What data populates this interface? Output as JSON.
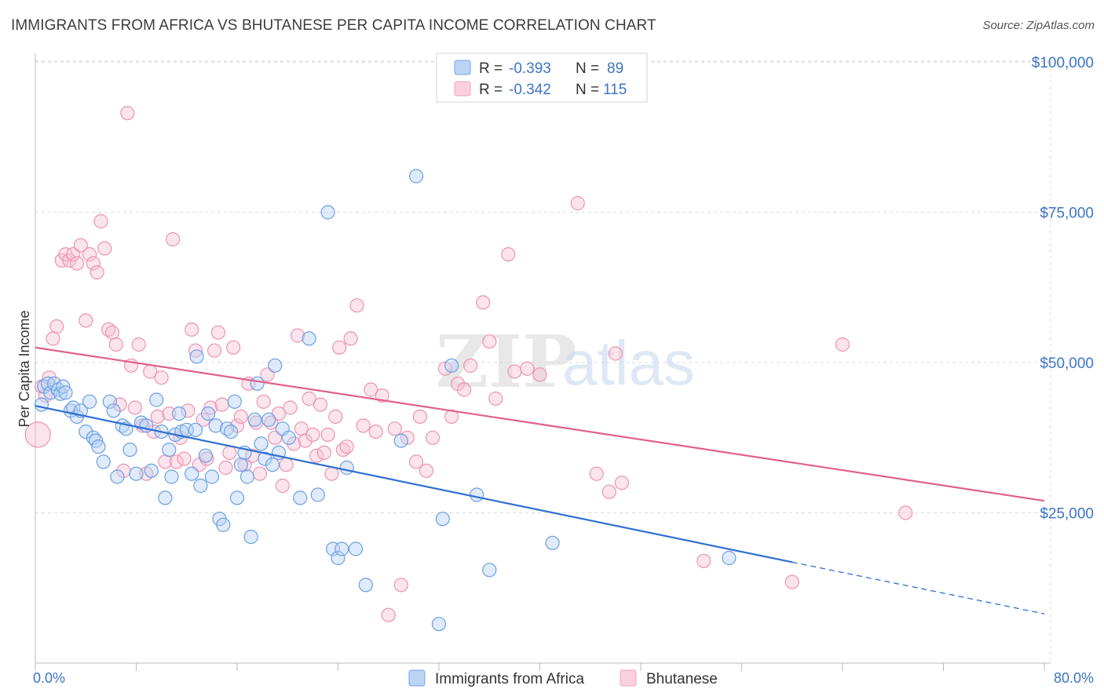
{
  "header": {
    "title": "IMMIGRANTS FROM AFRICA VS BHUTANESE PER CAPITA INCOME CORRELATION CHART",
    "source": "Source: ZipAtlas.com"
  },
  "watermark": {
    "zip": "ZIP",
    "atlas": "atlas"
  },
  "legend": {
    "rows": [
      {
        "r_label": "R = ",
        "r_value": "-0.393",
        "n_label": "N = ",
        "n_value": "89"
      },
      {
        "r_label": "R = ",
        "r_value": "-0.342",
        "n_label": "N = ",
        "n_value": "115"
      }
    ]
  },
  "chart_data": {
    "type": "scatter",
    "title": "IMMIGRANTS FROM AFRICA VS BHUTANESE PER CAPITA INCOME CORRELATION CHART",
    "xlabel": "",
    "ylabel": "Per Capita Income",
    "xlim": [
      0,
      80
    ],
    "ylim": [
      0,
      105000
    ],
    "x_tick_labels": [
      "0.0%",
      "80.0%"
    ],
    "y_ticks": [
      25000,
      50000,
      75000,
      100000
    ],
    "y_tick_labels": [
      "$25,000",
      "$50,000",
      "$75,000",
      "$100,000"
    ],
    "grid": true,
    "legend_position": "top-center",
    "colors": {
      "africa": "#6fa3e8",
      "africa_line": "#2f6fd0",
      "bhutanese": "#f1a0bd",
      "bhutanese_line": "#e0608a"
    },
    "series": [
      {
        "name": "Immigrants from Africa",
        "r": -0.393,
        "n": 89,
        "trend": {
          "x0": 0,
          "y0": 42800,
          "x1": 60,
          "y1": 16800,
          "dash_to_x": 80,
          "dash_to_y": 8200
        },
        "points": [
          [
            0.5,
            43000
          ],
          [
            0.7,
            46000
          ],
          [
            1.0,
            46500
          ],
          [
            1.2,
            45000
          ],
          [
            1.5,
            46500
          ],
          [
            1.8,
            45500
          ],
          [
            2.0,
            44800
          ],
          [
            2.2,
            46000
          ],
          [
            2.4,
            45000
          ],
          [
            2.8,
            42000
          ],
          [
            3.0,
            42500
          ],
          [
            3.3,
            41000
          ],
          [
            3.6,
            42000
          ],
          [
            4.0,
            38500
          ],
          [
            4.3,
            43500
          ],
          [
            4.6,
            37500
          ],
          [
            4.8,
            37000
          ],
          [
            5.0,
            36000
          ],
          [
            5.4,
            33500
          ],
          [
            5.9,
            43500
          ],
          [
            6.2,
            42000
          ],
          [
            6.5,
            31000
          ],
          [
            6.9,
            39500
          ],
          [
            7.2,
            39000
          ],
          [
            7.5,
            35500
          ],
          [
            8.0,
            31500
          ],
          [
            8.4,
            40000
          ],
          [
            8.8,
            39500
          ],
          [
            9.2,
            32000
          ],
          [
            9.6,
            43800
          ],
          [
            10.0,
            38500
          ],
          [
            10.3,
            27500
          ],
          [
            10.6,
            35500
          ],
          [
            10.8,
            31000
          ],
          [
            11.1,
            38000
          ],
          [
            11.4,
            41500
          ],
          [
            11.6,
            38500
          ],
          [
            12.0,
            38800
          ],
          [
            12.4,
            31500
          ],
          [
            12.7,
            38800
          ],
          [
            12.8,
            51000
          ],
          [
            13.1,
            29500
          ],
          [
            13.5,
            34500
          ],
          [
            13.7,
            41500
          ],
          [
            14.0,
            31000
          ],
          [
            14.3,
            39500
          ],
          [
            14.6,
            24000
          ],
          [
            14.9,
            23000
          ],
          [
            15.2,
            39000
          ],
          [
            15.5,
            38500
          ],
          [
            15.8,
            43500
          ],
          [
            16.0,
            27500
          ],
          [
            16.3,
            33000
          ],
          [
            16.6,
            35000
          ],
          [
            16.8,
            31000
          ],
          [
            17.1,
            21000
          ],
          [
            17.4,
            40500
          ],
          [
            17.6,
            46500
          ],
          [
            17.9,
            36500
          ],
          [
            18.2,
            34000
          ],
          [
            18.5,
            40500
          ],
          [
            18.8,
            33000
          ],
          [
            19.0,
            49500
          ],
          [
            19.3,
            35000
          ],
          [
            19.6,
            39000
          ],
          [
            20.1,
            37500
          ],
          [
            21.7,
            54000
          ],
          [
            21.0,
            27500
          ],
          [
            22.4,
            28000
          ],
          [
            23.2,
            75000
          ],
          [
            23.6,
            19000
          ],
          [
            24.0,
            17500
          ],
          [
            24.3,
            19000
          ],
          [
            24.7,
            32500
          ],
          [
            25.4,
            19000
          ],
          [
            26.2,
            13000
          ],
          [
            29.0,
            37000
          ],
          [
            30.2,
            81000
          ],
          [
            32.0,
            6500
          ],
          [
            32.3,
            24000
          ],
          [
            33.0,
            49500
          ],
          [
            35.0,
            28000
          ],
          [
            36.0,
            15500
          ],
          [
            41.0,
            20000
          ],
          [
            55.0,
            17500
          ]
        ]
      },
      {
        "name": "Bhutanese",
        "r": -0.342,
        "n": 115,
        "trend": {
          "x0": 0,
          "y0": 52500,
          "x1": 80,
          "y1": 27000
        },
        "points": [
          [
            0.2,
            38000
          ],
          [
            0.5,
            46000
          ],
          [
            0.8,
            44500
          ],
          [
            1.1,
            47500
          ],
          [
            1.4,
            54000
          ],
          [
            1.7,
            56000
          ],
          [
            2.1,
            67000
          ],
          [
            2.4,
            68000
          ],
          [
            2.7,
            67000
          ],
          [
            3.0,
            68000
          ],
          [
            3.3,
            66500
          ],
          [
            3.6,
            69500
          ],
          [
            4.0,
            57000
          ],
          [
            4.3,
            68000
          ],
          [
            4.6,
            66500
          ],
          [
            4.9,
            65000
          ],
          [
            5.2,
            73500
          ],
          [
            5.5,
            69000
          ],
          [
            5.8,
            55500
          ],
          [
            6.1,
            55000
          ],
          [
            6.4,
            53000
          ],
          [
            6.7,
            43000
          ],
          [
            7.0,
            32000
          ],
          [
            7.3,
            91500
          ],
          [
            7.6,
            49500
          ],
          [
            7.9,
            42500
          ],
          [
            8.2,
            53000
          ],
          [
            8.5,
            39500
          ],
          [
            8.8,
            31500
          ],
          [
            9.1,
            48500
          ],
          [
            9.4,
            38500
          ],
          [
            9.7,
            41000
          ],
          [
            10.0,
            47500
          ],
          [
            10.3,
            33500
          ],
          [
            10.6,
            41500
          ],
          [
            10.9,
            70500
          ],
          [
            11.2,
            33500
          ],
          [
            11.5,
            37500
          ],
          [
            11.8,
            34000
          ],
          [
            12.1,
            42000
          ],
          [
            12.4,
            55500
          ],
          [
            12.7,
            52000
          ],
          [
            13.0,
            33000
          ],
          [
            13.3,
            40500
          ],
          [
            13.6,
            34000
          ],
          [
            13.9,
            42500
          ],
          [
            14.2,
            52000
          ],
          [
            14.5,
            55000
          ],
          [
            14.8,
            43000
          ],
          [
            15.1,
            32500
          ],
          [
            15.4,
            35000
          ],
          [
            15.7,
            52500
          ],
          [
            16.0,
            39500
          ],
          [
            16.3,
            41000
          ],
          [
            16.6,
            33000
          ],
          [
            16.9,
            46500
          ],
          [
            17.2,
            34500
          ],
          [
            17.5,
            40000
          ],
          [
            17.8,
            31500
          ],
          [
            18.1,
            43500
          ],
          [
            18.4,
            48000
          ],
          [
            18.7,
            40000
          ],
          [
            19.0,
            37500
          ],
          [
            19.3,
            41500
          ],
          [
            19.6,
            29500
          ],
          [
            19.9,
            33000
          ],
          [
            20.2,
            42500
          ],
          [
            20.5,
            36500
          ],
          [
            20.8,
            54500
          ],
          [
            21.1,
            39000
          ],
          [
            21.4,
            37000
          ],
          [
            21.7,
            44000
          ],
          [
            22.0,
            38000
          ],
          [
            22.3,
            34500
          ],
          [
            22.6,
            43000
          ],
          [
            22.9,
            35000
          ],
          [
            23.2,
            38000
          ],
          [
            23.5,
            31500
          ],
          [
            23.8,
            41000
          ],
          [
            24.1,
            52500
          ],
          [
            24.4,
            35500
          ],
          [
            24.7,
            36000
          ],
          [
            25.0,
            54000
          ],
          [
            25.5,
            59500
          ],
          [
            26.0,
            39500
          ],
          [
            26.6,
            45500
          ],
          [
            27.0,
            38500
          ],
          [
            27.5,
            44500
          ],
          [
            28.0,
            8000
          ],
          [
            28.5,
            39000
          ],
          [
            29.0,
            13000
          ],
          [
            29.5,
            37500
          ],
          [
            30.2,
            33500
          ],
          [
            30.5,
            41000
          ],
          [
            31.0,
            32000
          ],
          [
            31.5,
            37500
          ],
          [
            32.5,
            49000
          ],
          [
            33.0,
            41000
          ],
          [
            33.5,
            46500
          ],
          [
            34.0,
            45500
          ],
          [
            34.5,
            49500
          ],
          [
            35.5,
            60000
          ],
          [
            36.0,
            53500
          ],
          [
            36.5,
            44000
          ],
          [
            37.5,
            68000
          ],
          [
            38.0,
            48500
          ],
          [
            39.0,
            49000
          ],
          [
            40.0,
            48000
          ],
          [
            43.0,
            76500
          ],
          [
            44.5,
            31500
          ],
          [
            45.5,
            28500
          ],
          [
            46.0,
            51500
          ],
          [
            46.5,
            30000
          ],
          [
            53.0,
            17000
          ],
          [
            60.0,
            13500
          ],
          [
            64.0,
            53000
          ],
          [
            69.0,
            25000
          ]
        ]
      }
    ]
  },
  "bottom_legend": {
    "items": [
      {
        "label": "Immigrants from Africa"
      },
      {
        "label": "Bhutanese"
      }
    ]
  }
}
